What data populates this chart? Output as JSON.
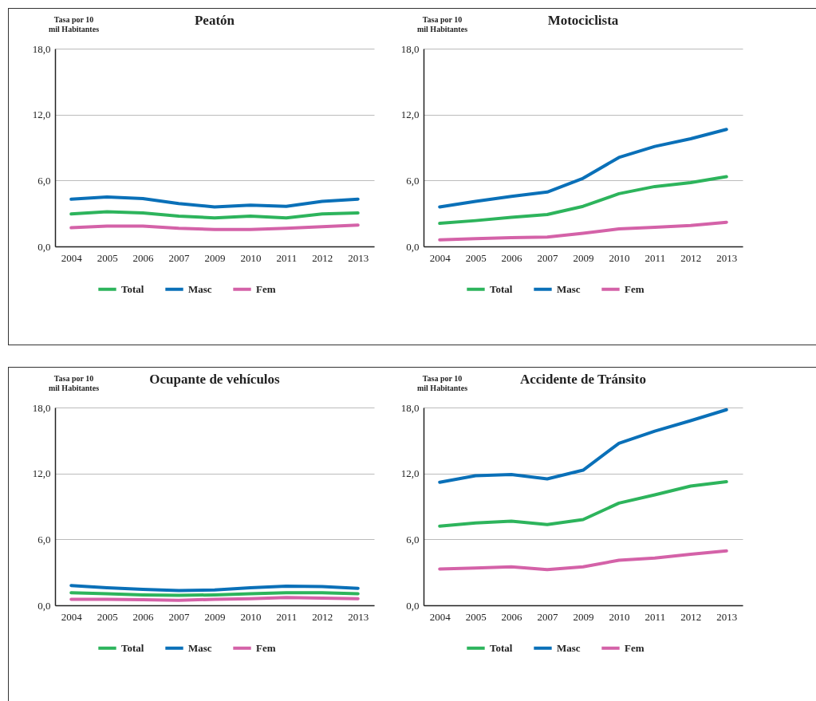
{
  "chart_data": [
    {
      "type": "line",
      "title": "Peatón",
      "ylabel": "Tasa por 10 mil Habitantes",
      "categories": [
        "2004",
        "2005",
        "2006",
        "2007",
        "2009",
        "2010",
        "2011",
        "2012",
        "2013"
      ],
      "ylim": [
        0,
        18
      ],
      "yticks": [
        {
          "value": 0,
          "label": "0,0"
        },
        {
          "value": 6,
          "label": "6,0"
        },
        {
          "value": 12,
          "label": "12,0"
        },
        {
          "value": 18,
          "label": "18,0"
        }
      ],
      "grid": "y",
      "legend": "bottom",
      "series": [
        {
          "name": "Total",
          "color": "#2db45c",
          "values": [
            2.95,
            3.15,
            3.05,
            2.75,
            2.6,
            2.75,
            2.6,
            2.95,
            3.05
          ]
        },
        {
          "name": "Masc",
          "color": "#0a70b8",
          "values": [
            4.3,
            4.5,
            4.35,
            3.9,
            3.6,
            3.75,
            3.65,
            4.1,
            4.3
          ]
        },
        {
          "name": "Fem",
          "color": "#d462a8",
          "values": [
            1.7,
            1.85,
            1.85,
            1.65,
            1.55,
            1.55,
            1.65,
            1.8,
            1.95
          ]
        }
      ]
    },
    {
      "type": "line",
      "title": "Motociclista",
      "ylabel": "Tasa por 10 mil Habitantes",
      "categories": [
        "2004",
        "2005",
        "2006",
        "2007",
        "2009",
        "2010",
        "2011",
        "2012",
        "2013"
      ],
      "ylim": [
        0,
        18
      ],
      "yticks": [
        {
          "value": 0,
          "label": "0,0"
        },
        {
          "value": 6,
          "label": "6,0"
        },
        {
          "value": 12,
          "label": "12,0"
        },
        {
          "value": 18,
          "label": "18,0"
        }
      ],
      "grid": "y",
      "legend": "bottom",
      "series": [
        {
          "name": "Total",
          "color": "#2db45c",
          "values": [
            2.1,
            2.35,
            2.65,
            2.9,
            3.65,
            4.8,
            5.45,
            5.8,
            6.35
          ]
        },
        {
          "name": "Masc",
          "color": "#0a70b8",
          "values": [
            3.6,
            4.1,
            4.55,
            4.95,
            6.2,
            8.1,
            9.1,
            9.8,
            10.65
          ]
        },
        {
          "name": "Fem",
          "color": "#d462a8",
          "values": [
            0.6,
            0.7,
            0.8,
            0.85,
            1.2,
            1.6,
            1.75,
            1.9,
            2.2
          ]
        }
      ]
    },
    {
      "type": "line",
      "title": "Ocupante de vehículos",
      "ylabel": "Tasa por 10 mil Habitantes",
      "categories": [
        "2004",
        "2005",
        "2006",
        "2007",
        "2009",
        "2010",
        "2011",
        "2012",
        "2013"
      ],
      "ylim": [
        0,
        18
      ],
      "yticks": [
        {
          "value": 0,
          "label": "0,0"
        },
        {
          "value": 6,
          "label": "6,0"
        },
        {
          "value": 12,
          "label": "12,0"
        },
        {
          "value": 18,
          "label": "18,0"
        }
      ],
      "grid": "y",
      "legend": "bottom",
      "series": [
        {
          "name": "Total",
          "color": "#2db45c",
          "values": [
            1.15,
            1.05,
            0.95,
            0.9,
            0.95,
            1.05,
            1.15,
            1.15,
            1.05
          ]
        },
        {
          "name": "Masc",
          "color": "#0a70b8",
          "values": [
            1.8,
            1.6,
            1.45,
            1.35,
            1.4,
            1.6,
            1.75,
            1.7,
            1.55
          ]
        },
        {
          "name": "Fem",
          "color": "#d462a8",
          "values": [
            0.55,
            0.55,
            0.5,
            0.45,
            0.55,
            0.6,
            0.7,
            0.65,
            0.6
          ]
        }
      ]
    },
    {
      "type": "line",
      "title": "Accidente de Tránsito",
      "ylabel": "Tasa por 10 mil Habitantes",
      "categories": [
        "2004",
        "2005",
        "2006",
        "2007",
        "2009",
        "2010",
        "2011",
        "2012",
        "2013"
      ],
      "ylim": [
        0,
        18
      ],
      "yticks": [
        {
          "value": 0,
          "label": "0,0"
        },
        {
          "value": 6,
          "label": "6,0"
        },
        {
          "value": 12,
          "label": "12,0"
        },
        {
          "value": 18,
          "label": "18,0"
        }
      ],
      "grid": "y",
      "legend": "bottom",
      "series": [
        {
          "name": "Total",
          "color": "#2db45c",
          "values": [
            7.2,
            7.5,
            7.65,
            7.35,
            7.8,
            9.3,
            10.05,
            10.85,
            11.25
          ]
        },
        {
          "name": "Masc",
          "color": "#0a70b8",
          "values": [
            11.2,
            11.8,
            11.9,
            11.5,
            12.3,
            14.75,
            15.85,
            16.8,
            17.8
          ]
        },
        {
          "name": "Fem",
          "color": "#d462a8",
          "values": [
            3.3,
            3.4,
            3.5,
            3.25,
            3.5,
            4.1,
            4.3,
            4.65,
            4.95
          ]
        }
      ]
    }
  ]
}
